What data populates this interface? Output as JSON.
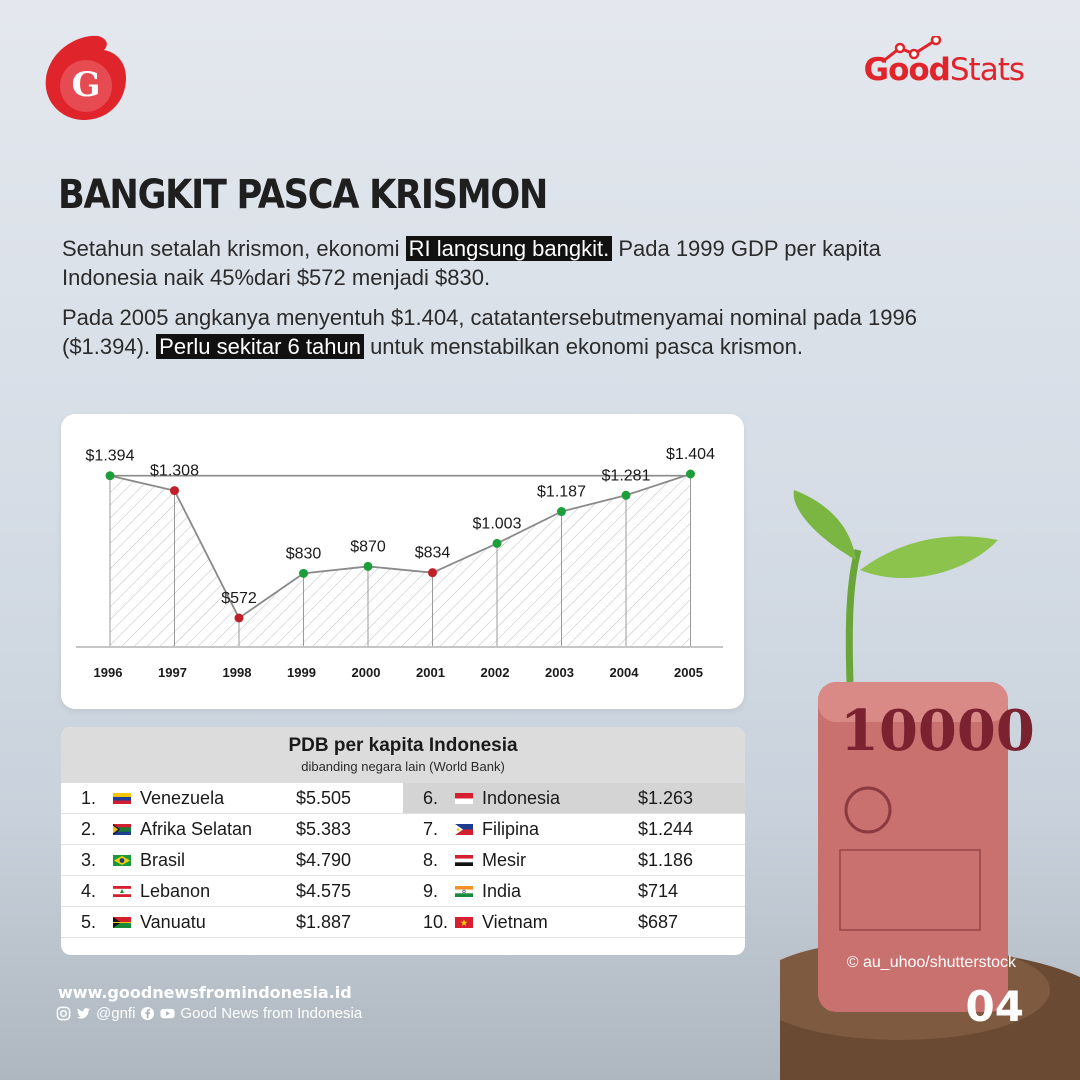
{
  "brand": {
    "logo_letter": "G",
    "goodstats_bold": "Good",
    "goodstats_light": "Stats"
  },
  "headline": "BANGKIT PASCA KRISMON",
  "para1": {
    "t1": "Setahun setalah krismon, ekonomi ",
    "hl": "RI langsung bangkit.",
    "t2": " Pada 1999 GDP per kapita Indonesia naik 45%dari $572 menjadi $830."
  },
  "para2": {
    "t1": "Pada 2005 angkanya menyentuh $1.404, catatantersebutmenyamai nominal pada 1996 ($1.394). ",
    "hl": "Perlu sekitar 6 tahun",
    "t2": " untuk menstabilkan ekonomi pasca krismon."
  },
  "chart_data": {
    "type": "line",
    "x": [
      "1996",
      "1997",
      "1998",
      "1999",
      "2000",
      "2001",
      "2002",
      "2003",
      "2004",
      "2005"
    ],
    "values": [
      1394,
      1308,
      572,
      830,
      870,
      834,
      1003,
      1187,
      1281,
      1404
    ],
    "data_labels": [
      "$1.394",
      "$1.308",
      "$572",
      "$830",
      "$870",
      "$834",
      "$1.003",
      "$1.187",
      "$1.281",
      "$1.404"
    ],
    "point_colors": [
      "#1e9e3a",
      "#c0202a",
      "#c0202a",
      "#1e9e3a",
      "#1e9e3a",
      "#c0202a",
      "#1e9e3a",
      "#1e9e3a",
      "#1e9e3a",
      "#1e9e3a"
    ],
    "reference_line": 1394,
    "area_fill": "hatched",
    "grid": false
  },
  "table": {
    "title": "PDB per kapita Indonesia",
    "subtitle": "dibanding negara lain (World Bank)",
    "left": [
      {
        "rank": "1.",
        "country": "Venezuela",
        "value": "$5.505",
        "flag": "venezuela"
      },
      {
        "rank": "2.",
        "country": "Afrika Selatan",
        "value": "$5.383",
        "flag": "south-africa"
      },
      {
        "rank": "3.",
        "country": "Brasil",
        "value": "$4.790",
        "flag": "brazil"
      },
      {
        "rank": "4.",
        "country": "Lebanon",
        "value": "$4.575",
        "flag": "lebanon"
      },
      {
        "rank": "5.",
        "country": "Vanuatu",
        "value": "$1.887",
        "flag": "vanuatu"
      }
    ],
    "right": [
      {
        "rank": "6.",
        "country": "Indonesia",
        "value": "$1.263",
        "flag": "indonesia",
        "highlight": true
      },
      {
        "rank": "7.",
        "country": "Filipina",
        "value": "$1.244",
        "flag": "philippines"
      },
      {
        "rank": "8.",
        "country": "Mesir",
        "value": "$1.186",
        "flag": "egypt"
      },
      {
        "rank": "9.",
        "country": "India",
        "value": "$714",
        "flag": "india"
      },
      {
        "rank": "10.",
        "country": "Vietnam",
        "value": "$687",
        "flag": "vietnam"
      }
    ]
  },
  "footer": {
    "credit": "© au_uhoo/shutterstock",
    "page": "04",
    "website": "www.goodnewsfromindonesia.id",
    "handle": "@gnfi",
    "channel": "Good News from Indonesia"
  },
  "colors": {
    "accent": "#e0242b",
    "up": "#1e9e3a",
    "down": "#c0202a"
  }
}
